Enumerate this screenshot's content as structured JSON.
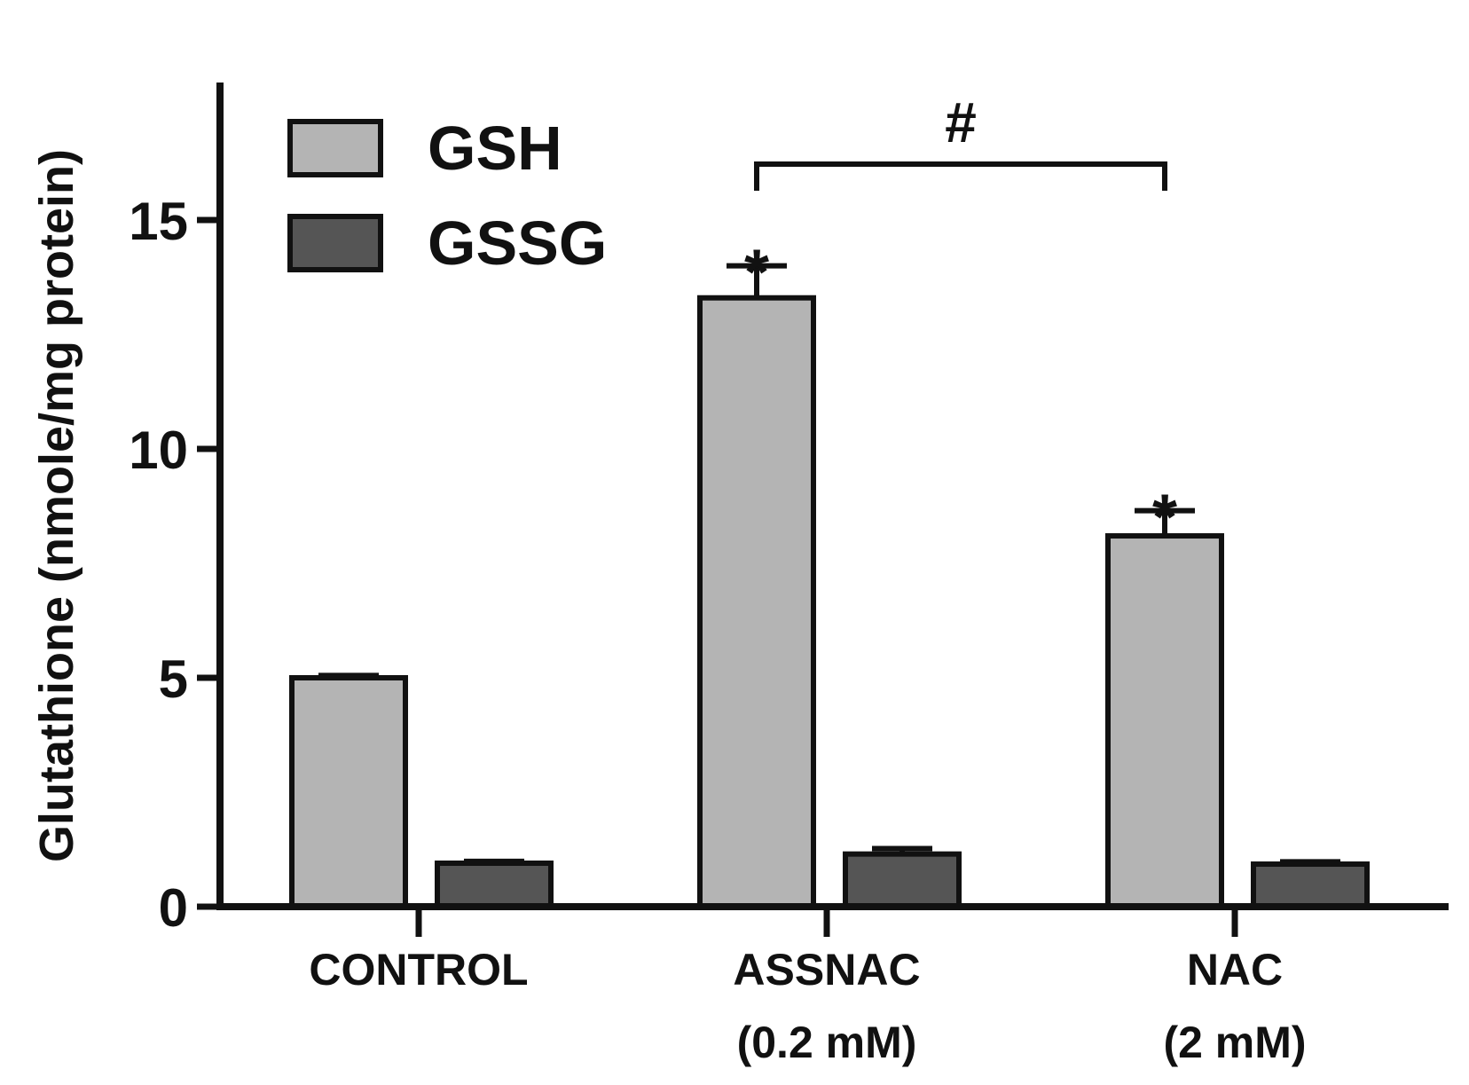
{
  "chart_data": {
    "type": "bar",
    "title": "",
    "xlabel": "",
    "ylabel": "Glutathione  (nmole/mg protein)",
    "ylim": [
      0,
      18
    ],
    "yticks": [
      "0",
      "5",
      "10",
      "15"
    ],
    "categories": [
      {
        "line1": "CONTROL",
        "line2": ""
      },
      {
        "line1": "ASSNAC",
        "line2": "(0.2 mM)"
      },
      {
        "line1": "NAC",
        "line2": "(2 mM)"
      }
    ],
    "series": [
      {
        "name": "GSH",
        "color": "#b4b4b4",
        "values": [
          5.0,
          13.3,
          8.1
        ],
        "errors": [
          0.05,
          0.7,
          0.55
        ]
      },
      {
        "name": "GSSG",
        "color": "#555555",
        "values": [
          0.95,
          1.15,
          0.93
        ],
        "errors": [
          0.04,
          0.12,
          0.05
        ]
      }
    ],
    "annotations": {
      "stars": [
        {
          "series": 0,
          "category": 1,
          "label": "*"
        },
        {
          "series": 0,
          "category": 2,
          "label": "*"
        }
      ],
      "bracket": {
        "from_category": 1,
        "to_category": 2,
        "label": "#"
      }
    },
    "legend": {
      "position": "top-left"
    },
    "grid": false
  }
}
